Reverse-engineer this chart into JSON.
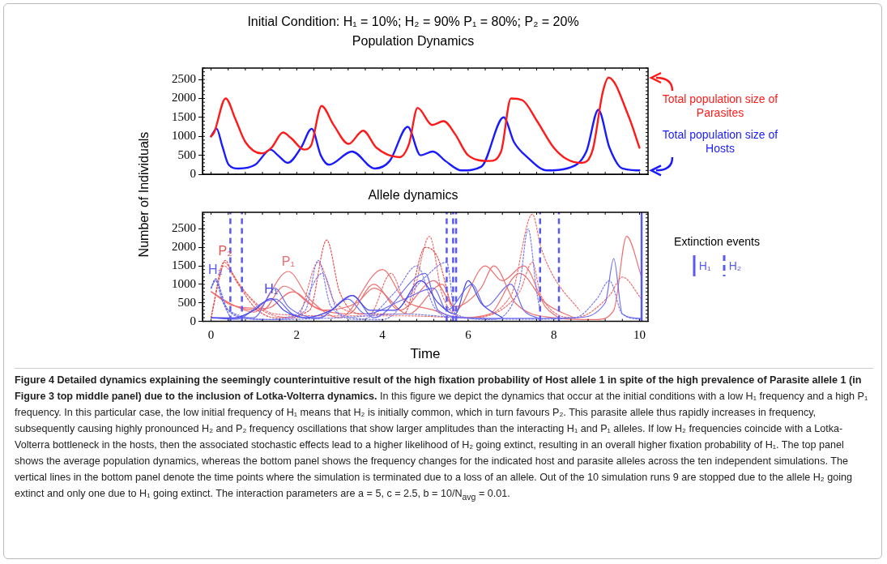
{
  "chart_data": [
    {
      "type": "line",
      "subtitle": "Initial Condition: H₁ = 10%; H₂ = 90%  P₁ = 80%; P₂ = 20%",
      "title": "Population Dynamics",
      "ylabel": "Number of Individuals",
      "xlim": [
        -0.2,
        10.2
      ],
      "xticks": [
        0,
        2,
        4,
        6,
        8,
        10
      ],
      "ylim": [
        0,
        2800
      ],
      "yticks": [
        0,
        500,
        1000,
        1500,
        2000,
        2500
      ],
      "tick_labels": "y",
      "grid": false,
      "legend": false,
      "marker": "none",
      "series": [
        {
          "name": "Total population size of Parasites",
          "color": "#ff1a1a",
          "line_style": "solid",
          "x": [
            0,
            0.07,
            0.34,
            0.57,
            0.8,
            1.18,
            1.41,
            1.68,
            1.87,
            2.17,
            2.33,
            2.58,
            2.86,
            3.21,
            3.55,
            3.86,
            4.4,
            4.62,
            4.82,
            5.16,
            5.43,
            5.7,
            6.0,
            6.5,
            6.77,
            7.0,
            7.27,
            7.61,
            8.0,
            8.3,
            8.64,
            8.91,
            9.14,
            9.28,
            9.74,
            10
          ],
          "values": [
            1000,
            1100,
            2000,
            1450,
            850,
            550,
            700,
            1100,
            950,
            650,
            750,
            1800,
            1300,
            800,
            1150,
            700,
            450,
            800,
            1750,
            1300,
            1400,
            1050,
            500,
            350,
            600,
            2000,
            1950,
            1400,
            700,
            400,
            300,
            650,
            2150,
            2550,
            1550,
            700
          ]
        },
        {
          "name": "Total population size of Hosts",
          "color": "#1a1aff",
          "line_style": "solid",
          "x": [
            0,
            0.13,
            0.26,
            0.41,
            0.64,
            1.03,
            1.39,
            1.56,
            1.79,
            2.1,
            2.35,
            2.56,
            2.75,
            3.29,
            3.82,
            4.17,
            4.59,
            4.89,
            5.18,
            5.47,
            5.85,
            6.31,
            6.83,
            7.07,
            7.38,
            7.84,
            8.3,
            8.76,
            9.04,
            9.3,
            9.6,
            10
          ],
          "values": [
            1000,
            1200,
            750,
            250,
            150,
            250,
            650,
            500,
            300,
            700,
            1200,
            500,
            250,
            600,
            150,
            350,
            1250,
            500,
            600,
            350,
            100,
            200,
            1500,
            850,
            450,
            100,
            150,
            600,
            1700,
            700,
            150,
            100
          ]
        }
      ]
    },
    {
      "type": "line",
      "title": "Allele dynamics",
      "xlabel": "Time",
      "xlim": [
        -0.2,
        10.2
      ],
      "xticks": [
        0,
        2,
        4,
        6,
        8,
        10
      ],
      "ylim": [
        0,
        2950
      ],
      "yticks": [
        0,
        500,
        1000,
        1500,
        2000,
        2500
      ],
      "grid": false,
      "legend": "right",
      "legend_title": "Extinction events",
      "marker": "none",
      "series": [
        {
          "name": "H₁",
          "color": "#4646ec",
          "line_style": "solid",
          "x": [
            0,
            0.5,
            1.0,
            1.4,
            1.7,
            2.2,
            2.8,
            3.3,
            3.7,
            4.3,
            4.9,
            5.3,
            5.7,
            6.0,
            6.3,
            6.8
          ],
          "values": [
            100,
            80,
            300,
            620,
            300,
            100,
            300,
            700,
            300,
            300,
            1100,
            500,
            200,
            1100,
            500,
            100
          ]
        },
        {
          "color": "#6f6ff2",
          "line_style": "solid",
          "x": [
            0,
            0.6,
            1.2,
            1.5,
            1.9,
            2.5,
            3.2,
            3.6,
            4.5,
            5.2,
            5.5,
            6.1,
            6.4,
            7.0,
            7.3,
            7.65
          ],
          "values": [
            100,
            60,
            500,
            600,
            200,
            80,
            600,
            200,
            600,
            900,
            300,
            1000,
            400,
            1000,
            300,
            80
          ]
        },
        {
          "color": "#6f6ff2",
          "line_style": "solid",
          "x": [
            0,
            1.0,
            1.5,
            1.8,
            2.5,
            3.3,
            3.8,
            5.0,
            5.3,
            6.0,
            7.2,
            8.5,
            9.2,
            9.4,
            9.6,
            10.05
          ],
          "values": [
            100,
            100,
            900,
            400,
            100,
            700,
            100,
            1300,
            300,
            100,
            80,
            100,
            500,
            1700,
            200,
            80
          ]
        },
        {
          "name": "H₂",
          "color": "#5a5af0",
          "line_style": "dotted",
          "x": [
            0,
            0.1,
            0.25,
            0.45
          ],
          "values": [
            900,
            1150,
            600,
            100
          ]
        },
        {
          "color": "#7b7bf0",
          "line_style": "dotted",
          "x": [
            0,
            0.12,
            0.3,
            0.7,
            1.5,
            2.2,
            2.5,
            2.8,
            3.5,
            4.3,
            4.8,
            5.2,
            5.5
          ],
          "values": [
            900,
            1150,
            500,
            100,
            50,
            300,
            1650,
            400,
            50,
            800,
            1500,
            400,
            80
          ]
        },
        {
          "color": "#7b7bf0",
          "line_style": "dotted",
          "x": [
            0,
            0.1,
            0.4,
            1.2,
            2.0,
            2.6,
            3.0,
            4.0,
            5.0,
            5.5,
            5.7,
            6.5,
            7.2,
            7.4,
            7.6,
            7.68
          ],
          "values": [
            900,
            1100,
            300,
            50,
            200,
            1300,
            200,
            50,
            1200,
            1600,
            200,
            50,
            1000,
            2500,
            800,
            300
          ]
        },
        {
          "color": "#7b7bf0",
          "line_style": "dotted",
          "x": [
            0,
            0.1,
            0.4,
            1.5,
            3.0,
            4.5,
            6.0,
            7.5,
            8.5,
            9.0,
            9.3,
            9.6,
            10.05
          ],
          "values": [
            900,
            1100,
            300,
            50,
            100,
            200,
            80,
            60,
            100,
            600,
            1100,
            200,
            50
          ]
        },
        {
          "name": "P₁",
          "color": "#f07070",
          "line_style": "solid",
          "x": [
            0,
            0.5,
            1.0,
            1.8,
            2.3,
            3.0,
            4.0,
            4.5,
            5.2,
            5.8,
            6.5,
            7.2,
            7.8,
            8.5
          ],
          "values": [
            800,
            450,
            250,
            1350,
            600,
            100,
            1400,
            600,
            300,
            100,
            200,
            1300,
            500,
            80
          ]
        },
        {
          "color": "#f07070",
          "line_style": "solid",
          "x": [
            0,
            0.6,
            1.2,
            1.7,
            2.4,
            3.2,
            3.8,
            4.4,
            5.2,
            5.7,
            6.3,
            6.6,
            7.1,
            8.0,
            9.0,
            9.4,
            9.7,
            10.05
          ],
          "values": [
            800,
            400,
            300,
            950,
            400,
            200,
            1000,
            300,
            1100,
            400,
            900,
            1500,
            500,
            100,
            50,
            300,
            2300,
            1200
          ]
        },
        {
          "color": "#f07070",
          "line_style": "solid",
          "x": [
            0,
            0.5,
            1.3,
            1.9,
            2.6,
            3.4,
            3.8,
            4.6,
            5.4,
            5.7,
            6.4,
            6.8,
            7.3,
            7.8,
            8.1
          ],
          "values": [
            800,
            430,
            350,
            800,
            300,
            500,
            900,
            200,
            1000,
            300,
            1500,
            1100,
            1500,
            400,
            100
          ]
        },
        {
          "name": "P₂",
          "color": "#e85050",
          "line_style": "dotted",
          "x": [
            0,
            0.2,
            0.33,
            0.5,
            1.0,
            1.5,
            2.3,
            2.7,
            3.0,
            3.5,
            4.5,
            5.0,
            5.3,
            5.6
          ],
          "values": [
            100,
            1200,
            1650,
            1300,
            400,
            100,
            300,
            2200,
            800,
            200,
            200,
            2000,
            1700,
            400
          ]
        },
        {
          "color": "#f07070",
          "line_style": "dotted",
          "x": [
            0,
            0.3,
            0.6,
            1.2,
            2.0,
            2.5,
            2.9,
            3.7,
            4.2,
            4.6,
            5.1,
            5.4,
            6.0,
            7.0,
            7.5,
            7.7,
            8.0,
            8.6
          ],
          "values": [
            100,
            1600,
            1100,
            300,
            100,
            1600,
            500,
            200,
            1300,
            400,
            2300,
            700,
            100,
            700,
            2900,
            2000,
            1200,
            300
          ]
        },
        {
          "color": "#f07070",
          "line_style": "dotted",
          "x": [
            0,
            0.3,
            0.7,
            1.5,
            3.0,
            4.5,
            6.0,
            7.2,
            7.5,
            7.7,
            8.5,
            9.3,
            9.6,
            10.05
          ],
          "values": [
            100,
            1500,
            900,
            200,
            150,
            150,
            100,
            800,
            1600,
            700,
            100,
            700,
            1200,
            600
          ]
        }
      ],
      "ref_lines": [
        {
          "axis": "x",
          "value": 0.45,
          "label": "H₂",
          "color": "#5a5af0",
          "line_style": "dashed"
        },
        {
          "axis": "x",
          "value": 0.72,
          "color": "#5a5af0",
          "line_style": "dashed"
        },
        {
          "axis": "x",
          "value": 5.5,
          "color": "#5a5af0",
          "line_style": "dashed"
        },
        {
          "axis": "x",
          "value": 5.65,
          "color": "#5a5af0",
          "line_style": "dashed"
        },
        {
          "axis": "x",
          "value": 5.72,
          "color": "#5a5af0",
          "line_style": "dashed"
        },
        {
          "axis": "x",
          "value": 7.68,
          "color": "#5a5af0",
          "line_style": "dashed"
        },
        {
          "axis": "x",
          "value": 8.12,
          "color": "#5a5af0",
          "line_style": "dashed"
        },
        {
          "axis": "x",
          "value": 10.05,
          "label": "H₁",
          "color": "#5a5af0",
          "line_style": "solid"
        }
      ],
      "annotations": [
        "Figure 4 Detailed dynamics explaining the seemingly counterintuitive result of the high fixation probability of Host allele 1 in spite of the high prevalence of Parasite allele 1 (in Figure 3 top middle panel) due to the inclusion of Lotka-Volterra dynamics.",
        "In this figure we depict the dynamics that occur at the initial conditions with a low H₁ frequency and a high P₁ frequency. In this particular case, the low initial frequency of H₁ means that H₂ is initially common, which in turn favours P₂. This parasite allele thus rapidly increases in frequency, subsequently causing highly pronounced H₂ and P₂ frequency oscillations that show larger amplitudes than the interacting H₁ and P₁ alleles. If low H₂ frequencies coincide with a Lotka-Volterra bottleneck in the hosts, then the associated stochastic effects lead to a higher likelihood of H₂ going extinct, resulting in an overall higher fixation probability of H₁. The top panel shows the average population dynamics, whereas the bottom panel shows the frequency changes for the indicated host and parasite alleles across the ten independent simulations. The vertical lines in the bottom panel denote the time points where the simulation is terminated due to a loss of an allele. Out of the 10 simulation runs 9 are stopped due to the allele H₂ going extinct and only one due to H₁ going extinct. The interaction parameters are a = 5, c = 2.5, b = 10/N$_{avg}$ = 0.01."
      ]
    }
  ]
}
